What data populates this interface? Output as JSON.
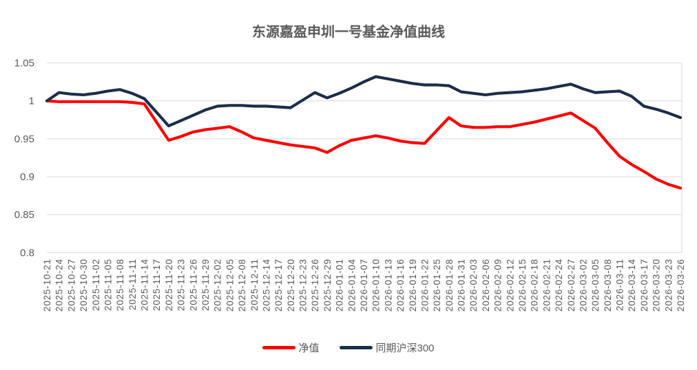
{
  "chart_data": {
    "type": "line",
    "title": "东源嘉盈申圳一号基金净值曲线",
    "x": [
      "2025-10-21",
      "2025-10-24",
      "2025-10-27",
      "2025-10-30",
      "2025-11-02",
      "2025-11-05",
      "2025-11-08",
      "2025-11-11",
      "2025-11-14",
      "2025-11-17",
      "2025-11-20",
      "2025-11-23",
      "2025-11-26",
      "2025-11-29",
      "2025-12-02",
      "2025-12-05",
      "2025-12-08",
      "2025-12-11",
      "2025-12-14",
      "2025-12-17",
      "2025-12-20",
      "2025-12-23",
      "2025-12-26",
      "2025-12-29",
      "2026-01-01",
      "2026-01-04",
      "2026-01-07",
      "2026-01-10",
      "2026-01-13",
      "2026-01-16",
      "2026-01-19",
      "2026-01-22",
      "2026-01-25",
      "2026-01-28",
      "2026-01-31",
      "2026-02-03",
      "2026-02-06",
      "2026-02-09",
      "2026-02-12",
      "2026-02-15",
      "2026-02-18",
      "2026-02-21",
      "2026-02-24",
      "2026-02-27",
      "2026-03-02",
      "2026-03-05",
      "2026-03-08",
      "2026-03-11",
      "2026-03-14",
      "2026-03-17",
      "2026-03-20",
      "2026-03-23",
      "2026-03-26"
    ],
    "series": [
      {
        "name": "净值",
        "color": "#ff0000",
        "values": [
          1.0,
          0.999,
          0.999,
          0.999,
          0.999,
          0.999,
          0.999,
          0.998,
          0.996,
          0.972,
          0.948,
          0.953,
          0.959,
          0.962,
          0.964,
          0.966,
          0.959,
          0.951,
          0.948,
          0.945,
          0.942,
          0.94,
          0.938,
          0.932,
          0.941,
          0.948,
          0.951,
          0.954,
          0.951,
          0.947,
          0.945,
          0.944,
          0.961,
          0.978,
          0.967,
          0.965,
          0.965,
          0.966,
          0.966,
          0.969,
          0.972,
          0.976,
          0.98,
          0.984,
          0.974,
          0.964,
          0.945,
          0.927,
          0.916,
          0.907,
          0.897,
          0.89,
          0.885
        ]
      },
      {
        "name": "同期沪深300",
        "color": "#1c2e4a",
        "values": [
          1.0,
          1.011,
          1.009,
          1.008,
          1.01,
          1.013,
          1.015,
          1.01,
          1.003,
          0.985,
          0.967,
          0.974,
          0.981,
          0.988,
          0.993,
          0.994,
          0.994,
          0.993,
          0.993,
          0.992,
          0.991,
          1.001,
          1.011,
          1.004,
          1.01,
          1.017,
          1.025,
          1.032,
          1.029,
          1.026,
          1.023,
          1.021,
          1.021,
          1.02,
          1.012,
          1.01,
          1.008,
          1.01,
          1.011,
          1.012,
          1.014,
          1.016,
          1.019,
          1.022,
          1.016,
          1.011,
          1.012,
          1.013,
          1.006,
          0.993,
          0.989,
          0.984,
          0.978
        ]
      }
    ],
    "ylim": [
      0.8,
      1.05
    ],
    "yticks": [
      1.05,
      1.0,
      0.95,
      0.9,
      0.85,
      0.8
    ],
    "ytick_labels": [
      "1.05",
      "1",
      "0.95",
      "0.9",
      "0.85",
      "0.8"
    ],
    "grid": true,
    "legend_position": "bottom"
  },
  "colors": {
    "grid": "#d9d9d9",
    "axis_text": "#595959",
    "title_text": "#595959"
  }
}
